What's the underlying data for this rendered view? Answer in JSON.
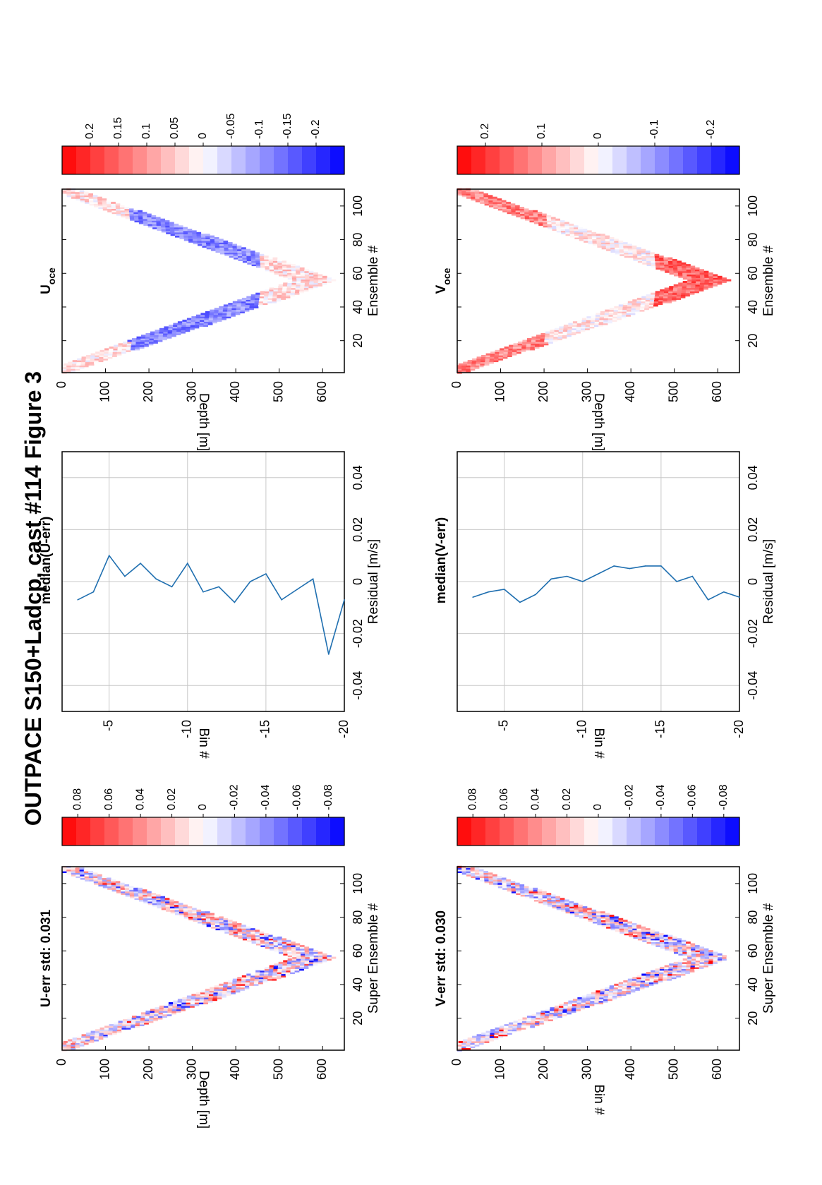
{
  "title": "OUTPACE S150+Ladcp, cast #114  Figure 3",
  "colors": {
    "line": "#1f6fb0",
    "red": "#ff0000",
    "blue": "#0000ff",
    "grid": "#c8c8c8"
  },
  "chart_data": [
    {
      "id": "u_err_map",
      "type": "heatmap",
      "title": "U-err std: 0.031",
      "xlabel": "Super Ensemble #",
      "ylabel": "Depth [m]",
      "xlim": [
        1,
        110
      ],
      "ylim": [
        0,
        650
      ],
      "xticks": [
        "20",
        "40",
        "60",
        "80",
        "100"
      ],
      "yticks": [
        "0",
        "100",
        "200",
        "300",
        "400",
        "500",
        "600"
      ],
      "profile": {
        "x": [
          1,
          56,
          110
        ],
        "top_depth": [
          10,
          630,
          30
        ],
        "band_width": 60
      },
      "colorbar": {
        "clim": [
          -0.09,
          0.09
        ],
        "ticks": [
          "0.08",
          "0.06",
          "0.04",
          "0.02",
          "0",
          "-0.02",
          "-0.04",
          "-0.06",
          "-0.08"
        ]
      }
    },
    {
      "id": "u_residual",
      "type": "line",
      "title": "median(U-err)",
      "xlabel": "Residual [m/s]",
      "ylabel": "Bin #",
      "xlim": [
        -0.05,
        0.05
      ],
      "ylim": [
        -20,
        -2
      ],
      "xticks": [
        "-0.04",
        "-0.02",
        "0",
        "0.02",
        "0.04"
      ],
      "yticks": [
        "-5",
        "-10",
        "-15",
        "-20"
      ],
      "grid": true,
      "series": [
        {
          "bin": [
            -3,
            -4,
            -5,
            -6,
            -7,
            -8,
            -9,
            -10,
            -11,
            -12,
            -13,
            -14,
            -15,
            -16,
            -17,
            -18,
            -19,
            -20
          ],
          "residual": [
            -0.007,
            -0.004,
            0.01,
            0.002,
            0.007,
            0.001,
            -0.002,
            0.007,
            -0.004,
            -0.002,
            -0.008,
            0.0,
            0.003,
            -0.007,
            -0.003,
            0.001,
            -0.028,
            -0.007
          ]
        }
      ]
    },
    {
      "id": "u_oce",
      "type": "heatmap",
      "title": "U",
      "title_sub": "oce",
      "xlabel": "Ensemble #",
      "ylabel": "Depth [m]",
      "xlim": [
        1,
        110
      ],
      "ylim": [
        0,
        650
      ],
      "xticks": [
        "20",
        "40",
        "60",
        "80",
        "100"
      ],
      "yticks": [
        "0",
        "100",
        "200",
        "300",
        "400",
        "500",
        "600"
      ],
      "profile": {
        "x": [
          1,
          56,
          110
        ],
        "top_depth": [
          10,
          630,
          30
        ],
        "band_width": 60
      },
      "colorbar": {
        "clim": [
          -0.25,
          0.25
        ],
        "ticks": [
          "0.2",
          "0.15",
          "0.1",
          "0.05",
          "0",
          "-0.05",
          "-0.1",
          "-0.15",
          "-0.2"
        ]
      }
    },
    {
      "id": "v_err_map",
      "type": "heatmap",
      "title": "V-err std: 0.030",
      "xlabel": "Super Ensemble #",
      "ylabel": "Bin #",
      "xlim": [
        1,
        110
      ],
      "ylim": [
        0,
        650
      ],
      "xticks": [
        "20",
        "40",
        "60",
        "80",
        "100"
      ],
      "yticks": [
        "0",
        "100",
        "200",
        "300",
        "400",
        "500",
        "600"
      ],
      "profile": {
        "x": [
          1,
          56,
          110
        ],
        "top_depth": [
          10,
          630,
          30
        ],
        "band_width": 60
      },
      "colorbar": {
        "clim": [
          -0.09,
          0.09
        ],
        "ticks": [
          "0.08",
          "0.06",
          "0.04",
          "0.02",
          "0",
          "-0.02",
          "-0.04",
          "-0.06",
          "-0.08"
        ]
      }
    },
    {
      "id": "v_residual",
      "type": "line",
      "title": "median(V-err)",
      "xlabel": "Residual [m/s]",
      "ylabel": "Bin #",
      "xlim": [
        -0.05,
        0.05
      ],
      "ylim": [
        -20,
        -2
      ],
      "xticks": [
        "-0.04",
        "-0.02",
        "0",
        "0.02",
        "0.04"
      ],
      "yticks": [
        "-5",
        "-10",
        "-15",
        "-20"
      ],
      "grid": true,
      "series": [
        {
          "bin": [
            -3,
            -4,
            -5,
            -6,
            -7,
            -8,
            -9,
            -10,
            -11,
            -12,
            -13,
            -14,
            -15,
            -16,
            -17,
            -18,
            -19,
            -20
          ],
          "residual": [
            -0.006,
            -0.004,
            -0.003,
            -0.008,
            -0.005,
            0.001,
            0.002,
            0.0,
            0.003,
            0.006,
            0.005,
            0.006,
            0.006,
            0.0,
            0.002,
            -0.007,
            -0.004,
            -0.006
          ]
        }
      ]
    },
    {
      "id": "v_oce",
      "type": "heatmap",
      "title": "V",
      "title_sub": "oce",
      "xlabel": "Ensemble #",
      "ylabel": "Depth [m]",
      "xlim": [
        1,
        110
      ],
      "ylim": [
        0,
        650
      ],
      "xticks": [
        "20",
        "40",
        "60",
        "80",
        "100"
      ],
      "yticks": [
        "0",
        "100",
        "200",
        "300",
        "400",
        "500",
        "600"
      ],
      "profile": {
        "x": [
          1,
          56,
          110
        ],
        "top_depth": [
          10,
          630,
          30
        ],
        "band_width": 60
      },
      "colorbar": {
        "clim": [
          -0.25,
          0.25
        ],
        "ticks": [
          "0.2",
          "0.1",
          "0",
          "-0.1",
          "-0.2"
        ]
      }
    }
  ]
}
